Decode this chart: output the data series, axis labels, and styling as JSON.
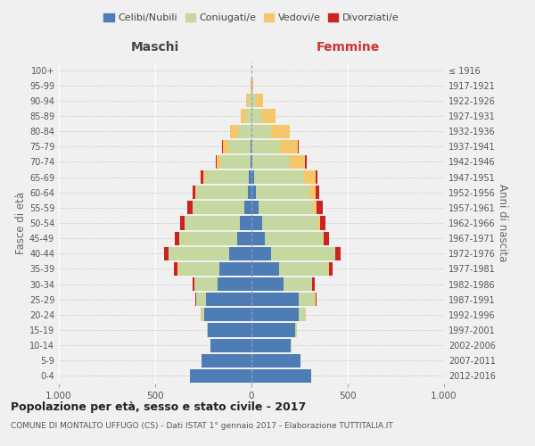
{
  "age_groups": [
    "0-4",
    "5-9",
    "10-14",
    "15-19",
    "20-24",
    "25-29",
    "30-34",
    "35-39",
    "40-44",
    "45-49",
    "50-54",
    "55-59",
    "60-64",
    "65-69",
    "70-74",
    "75-79",
    "80-84",
    "85-89",
    "90-94",
    "95-99",
    "100+"
  ],
  "birth_years": [
    "2012-2016",
    "2007-2011",
    "2002-2006",
    "1997-2001",
    "1992-1996",
    "1987-1991",
    "1982-1986",
    "1977-1981",
    "1972-1976",
    "1967-1971",
    "1962-1966",
    "1957-1961",
    "1952-1956",
    "1947-1951",
    "1942-1946",
    "1937-1941",
    "1932-1936",
    "1927-1931",
    "1922-1926",
    "1917-1921",
    "≤ 1916"
  ],
  "males": {
    "celibe": [
      320,
      260,
      215,
      225,
      245,
      235,
      175,
      165,
      115,
      75,
      60,
      35,
      20,
      12,
      5,
      5,
      0,
      0,
      0,
      0,
      0
    ],
    "coniugato": [
      0,
      0,
      0,
      5,
      15,
      50,
      120,
      215,
      315,
      300,
      285,
      270,
      265,
      230,
      155,
      115,
      70,
      30,
      15,
      2,
      0
    ],
    "vedovo": [
      0,
      0,
      0,
      0,
      2,
      2,
      2,
      2,
      2,
      2,
      2,
      2,
      5,
      10,
      20,
      30,
      40,
      25,
      15,
      2,
      0
    ],
    "divorziato": [
      0,
      0,
      0,
      0,
      2,
      5,
      10,
      20,
      22,
      20,
      25,
      25,
      15,
      10,
      5,
      5,
      0,
      0,
      0,
      0,
      0
    ]
  },
  "females": {
    "nubile": [
      310,
      255,
      205,
      225,
      245,
      245,
      165,
      145,
      100,
      70,
      55,
      35,
      22,
      12,
      5,
      2,
      2,
      2,
      2,
      0,
      0
    ],
    "coniugata": [
      0,
      0,
      2,
      10,
      35,
      85,
      150,
      255,
      335,
      300,
      290,
      285,
      280,
      260,
      195,
      145,
      100,
      50,
      20,
      2,
      0
    ],
    "vedova": [
      0,
      0,
      0,
      0,
      2,
      2,
      2,
      2,
      2,
      5,
      10,
      20,
      30,
      60,
      80,
      95,
      95,
      75,
      40,
      5,
      0
    ],
    "divorziata": [
      0,
      0,
      0,
      0,
      2,
      5,
      10,
      20,
      28,
      28,
      30,
      30,
      20,
      10,
      5,
      5,
      2,
      0,
      0,
      0,
      0
    ]
  },
  "colors": {
    "celibe": "#4e7db5",
    "coniugato": "#c5d8a0",
    "vedovo": "#f5c76a",
    "divorziato": "#cc2222"
  },
  "title": "Popolazione per età, sesso e stato civile - 2017",
  "subtitle": "COMUNE DI MONTALTO UFFUGO (CS) - Dati ISTAT 1° gennaio 2017 - Elaborazione TUTTITALIA.IT",
  "xlabel_left": "Maschi",
  "xlabel_right": "Femmine",
  "ylabel_left": "Fasce di età",
  "ylabel_right": "Anni di nascita",
  "xlim": 1000,
  "legend_labels": [
    "Celibi/Nubili",
    "Coniugati/e",
    "Vedovi/e",
    "Divorziati/e"
  ],
  "background_color": "#f0f0f0"
}
